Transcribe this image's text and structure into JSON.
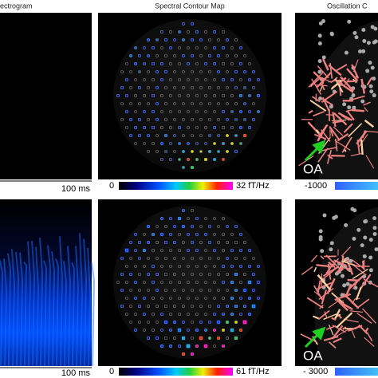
{
  "panels": {
    "top": {
      "spectrogram_title": "ectrogram",
      "contour_title": "Spectral Contour Map",
      "connectivity_title": "Oscillation C",
      "time_scale": "100 ms",
      "colorbar_min": "0",
      "colorbar_max": "32 fT/Hz",
      "connectivity_min": "-1000",
      "marker": "OA"
    },
    "bottom": {
      "time_scale": "100 ms",
      "colorbar_min": "0",
      "colorbar_max": "61 fT/Hz",
      "connectivity_min": "- 3000",
      "marker": "OA"
    }
  }
}
